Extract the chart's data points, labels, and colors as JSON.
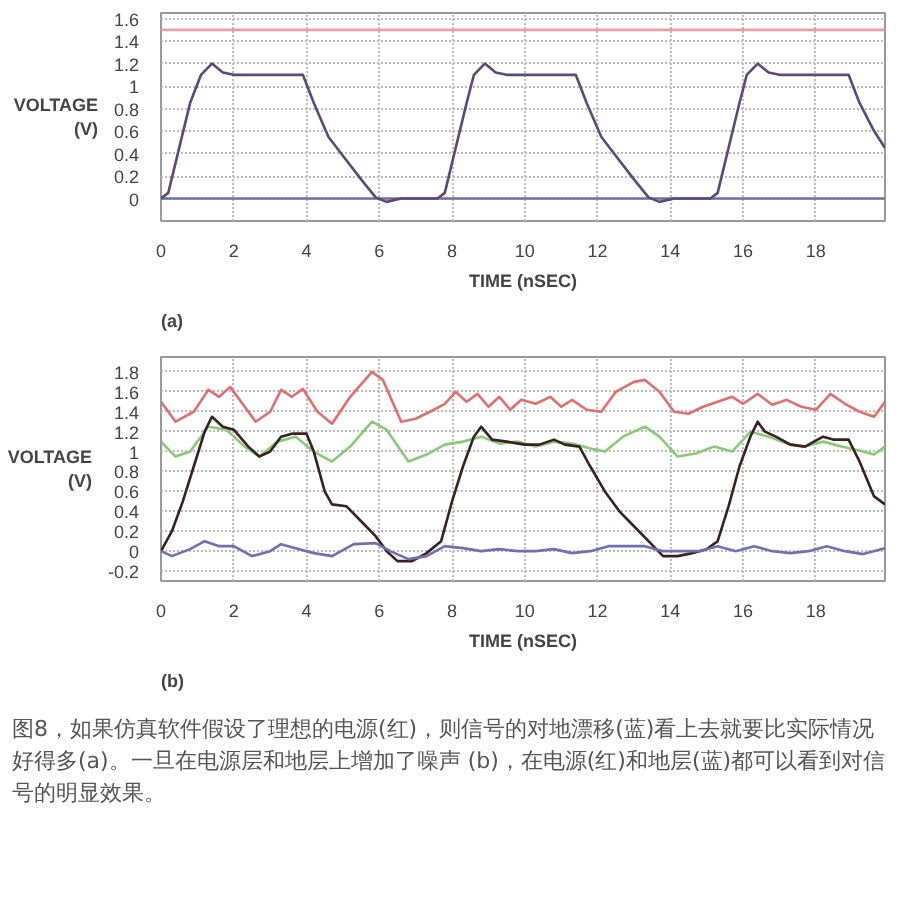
{
  "chart_data": [
    {
      "type": "line",
      "xlabel": "TIME (nSEC)",
      "ylabel": "VOLTAGE\n(V)",
      "annotations": [
        "(a)"
      ],
      "xlim": [
        0,
        19.9
      ],
      "ylim": [
        -0.2,
        1.65
      ],
      "xticks": [
        0,
        2,
        4,
        6,
        8,
        10,
        12,
        14,
        16,
        18
      ],
      "yticks": [
        0,
        0.2,
        0.4,
        0.6,
        0.8,
        1,
        1.2,
        1.4,
        1.6
      ],
      "grid": true,
      "series": [
        {
          "color": "#e8a0a8",
          "x": [
            0,
            19.9
          ],
          "values": [
            1.5,
            1.5
          ]
        },
        {
          "color": "#7070a0",
          "x": [
            0,
            19.9
          ],
          "values": [
            0,
            0
          ]
        },
        {
          "color": "#5a4a7a",
          "x": [
            0,
            0.2,
            0.5,
            0.8,
            1.1,
            1.4,
            1.7,
            2,
            3.9,
            4.2,
            4.6,
            5,
            5.5,
            5.9,
            6.2,
            6.6,
            7.6,
            7.8,
            8.1,
            8.4,
            8.6,
            8.9,
            9.2,
            9.5,
            11.4,
            11.7,
            12.1,
            12.5,
            13,
            13.4,
            13.7,
            14.1,
            15.1,
            15.3,
            15.6,
            15.9,
            16.1,
            16.4,
            16.7,
            17,
            18.9,
            19.2,
            19.6,
            19.9
          ],
          "values": [
            0,
            0.05,
            0.45,
            0.85,
            1.1,
            1.2,
            1.12,
            1.1,
            1.1,
            0.85,
            0.55,
            0.38,
            0.17,
            0.01,
            -0.03,
            0,
            0,
            0.05,
            0.45,
            0.85,
            1.1,
            1.2,
            1.12,
            1.1,
            1.1,
            0.85,
            0.55,
            0.38,
            0.17,
            0.01,
            -0.03,
            0,
            0,
            0.05,
            0.45,
            0.85,
            1.1,
            1.2,
            1.12,
            1.1,
            1.1,
            0.85,
            0.6,
            0.45
          ]
        }
      ]
    },
    {
      "type": "line",
      "xlabel": "TIME (nSEC)",
      "ylabel": "VOLTAGE\n(V)",
      "annotations": [
        "(b)",
        "图8，如果仿真软件假设了理想的电源(红)，则信号的对地漂移(蓝)看上去就要比实际情况好得多(a)。一旦在电源层和地层上增加了噪声 (b)，在电源(红)和地层(蓝)都可以看到对信号的明显效果。"
      ],
      "xlim": [
        0,
        19.9
      ],
      "ylim": [
        -0.3,
        1.95
      ],
      "xticks": [
        0,
        2,
        4,
        6,
        8,
        10,
        12,
        14,
        16,
        18
      ],
      "yticks": [
        -0.2,
        0,
        0.2,
        0.4,
        0.6,
        0.8,
        1,
        1.2,
        1.4,
        1.6,
        1.8
      ],
      "grid": true,
      "series": [
        {
          "color": "#e07070",
          "x": [
            0,
            0.4,
            0.9,
            1.3,
            1.6,
            1.9,
            2.3,
            2.6,
            3,
            3.3,
            3.6,
            3.9,
            4.3,
            4.7,
            5.2,
            5.8,
            6.1,
            6.6,
            7,
            7.5,
            7.8,
            8.1,
            8.4,
            8.7,
            9,
            9.3,
            9.6,
            9.9,
            10.3,
            10.7,
            11,
            11.3,
            11.7,
            12.1,
            12.5,
            13,
            13.3,
            13.7,
            14.1,
            14.5,
            14.9,
            15.3,
            15.7,
            16,
            16.4,
            16.8,
            17.2,
            17.6,
            18,
            18.4,
            18.8,
            19.2,
            19.6,
            19.9
          ],
          "values": [
            1.5,
            1.3,
            1.4,
            1.62,
            1.55,
            1.65,
            1.45,
            1.3,
            1.4,
            1.62,
            1.55,
            1.63,
            1.4,
            1.28,
            1.55,
            1.8,
            1.72,
            1.3,
            1.33,
            1.42,
            1.48,
            1.6,
            1.5,
            1.58,
            1.45,
            1.55,
            1.42,
            1.52,
            1.48,
            1.55,
            1.45,
            1.52,
            1.42,
            1.4,
            1.6,
            1.7,
            1.72,
            1.6,
            1.4,
            1.38,
            1.45,
            1.5,
            1.55,
            1.48,
            1.58,
            1.47,
            1.52,
            1.45,
            1.42,
            1.58,
            1.48,
            1.4,
            1.35,
            1.5
          ]
        },
        {
          "color": "#8cc87a",
          "x": [
            0,
            0.4,
            0.8,
            1.3,
            1.8,
            2.3,
            2.7,
            3.2,
            3.7,
            4.2,
            4.7,
            5.2,
            5.8,
            6.2,
            6.8,
            7.3,
            7.8,
            8.3,
            8.8,
            9.3,
            9.8,
            10.3,
            10.8,
            11.3,
            11.8,
            12.2,
            12.7,
            13.3,
            13.7,
            14.2,
            14.7,
            15.2,
            15.7,
            16.2,
            16.7,
            17.2,
            17.7,
            18.2,
            18.7,
            19.3,
            19.6,
            19.9
          ],
          "values": [
            1.1,
            0.95,
            1.0,
            1.25,
            1.22,
            1.05,
            0.95,
            1.1,
            1.15,
            1.0,
            0.9,
            1.05,
            1.3,
            1.22,
            0.9,
            0.97,
            1.07,
            1.1,
            1.15,
            1.08,
            1.1,
            1.05,
            1.1,
            1.08,
            1.03,
            1.0,
            1.15,
            1.25,
            1.15,
            0.95,
            0.98,
            1.05,
            1.0,
            1.2,
            1.15,
            1.08,
            1.05,
            1.1,
            1.05,
            1.0,
            0.97,
            1.05
          ]
        },
        {
          "color": "#3a2020",
          "x": [
            0,
            0.3,
            0.6,
            0.9,
            1.2,
            1.4,
            1.7,
            2,
            2.4,
            2.7,
            3,
            3.3,
            3.6,
            4,
            4.2,
            4.5,
            4.7,
            5.1,
            5.5,
            5.9,
            6.2,
            6.5,
            6.9,
            7.3,
            7.7,
            8,
            8.3,
            8.6,
            8.8,
            9.1,
            9.5,
            10,
            10.4,
            10.8,
            11.1,
            11.5,
            11.8,
            12.2,
            12.6,
            13,
            13.4,
            13.8,
            14.2,
            14.6,
            15,
            15.3,
            15.6,
            15.9,
            16.2,
            16.4,
            16.6,
            16.9,
            17.3,
            17.7,
            18.2,
            18.5,
            18.9,
            19.2,
            19.6,
            19.9
          ],
          "values": [
            0,
            0.2,
            0.5,
            0.85,
            1.2,
            1.35,
            1.25,
            1.22,
            1.05,
            0.95,
            1.0,
            1.15,
            1.18,
            1.18,
            1.0,
            0.6,
            0.47,
            0.45,
            0.3,
            0.15,
            0,
            -0.1,
            -0.1,
            -0.02,
            0.1,
            0.5,
            0.85,
            1.15,
            1.25,
            1.12,
            1.1,
            1.07,
            1.07,
            1.12,
            1.07,
            1.05,
            0.85,
            0.6,
            0.4,
            0.25,
            0.1,
            -0.05,
            -0.05,
            -0.02,
            0.02,
            0.1,
            0.45,
            0.85,
            1.15,
            1.3,
            1.2,
            1.15,
            1.07,
            1.05,
            1.15,
            1.12,
            1.12,
            0.9,
            0.55,
            0.47
          ]
        },
        {
          "color": "#7070b0",
          "x": [
            0,
            0.3,
            0.8,
            1.2,
            1.6,
            2,
            2.5,
            3,
            3.3,
            3.7,
            4.2,
            4.7,
            5.3,
            5.9,
            6.3,
            6.8,
            7.3,
            7.8,
            8.3,
            8.8,
            9.3,
            9.8,
            10.3,
            10.8,
            11.3,
            11.8,
            12.3,
            12.8,
            13.3,
            13.8,
            14.3,
            14.8,
            15.3,
            15.8,
            16.3,
            16.8,
            17.3,
            17.8,
            18.3,
            18.8,
            19.3,
            19.9
          ],
          "values": [
            0,
            -0.05,
            0.02,
            0.1,
            0.05,
            0.05,
            -0.05,
            0,
            0.07,
            0.03,
            -0.02,
            -0.05,
            0.07,
            0.08,
            0,
            -0.08,
            -0.05,
            0.05,
            0.03,
            0,
            0.02,
            0,
            0,
            0.02,
            -0.02,
            0,
            0.05,
            0.05,
            0.05,
            0,
            0,
            0,
            0.05,
            0,
            0.05,
            0,
            -0.02,
            0,
            0.05,
            0,
            -0.03,
            0.03
          ]
        }
      ]
    }
  ]
}
